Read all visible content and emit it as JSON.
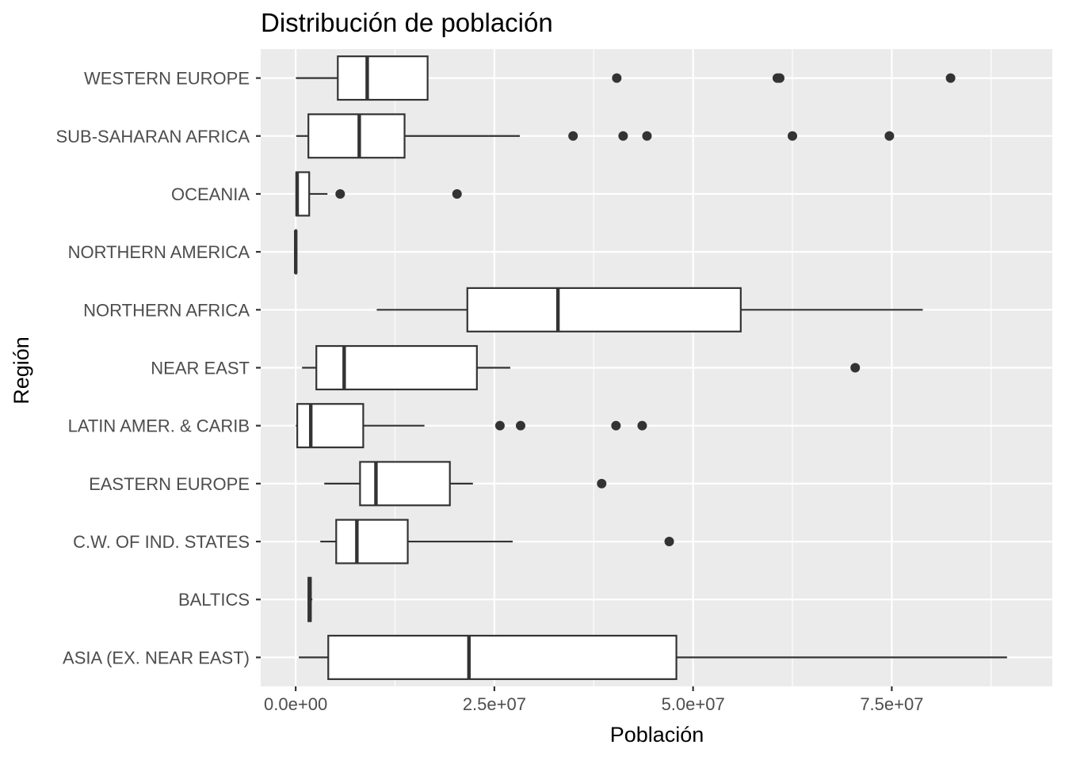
{
  "chart_data": {
    "type": "boxplot",
    "orientation": "horizontal",
    "title": "Distribución de población",
    "xlabel": "Población",
    "ylabel": "Región",
    "xlim": [
      -4400000,
      95200000
    ],
    "x_ticks": [
      0,
      25000000,
      50000000,
      75000000
    ],
    "x_tick_labels": [
      "0.0e+00",
      "2.5e+07",
      "5.0e+07",
      "7.5e+07"
    ],
    "grid": true,
    "background": "#ebebeb",
    "grid_color": "#ffffff",
    "box_fill": "#ffffff",
    "line_color": "#333333",
    "categories": [
      "WESTERN EUROPE",
      "SUB-SAHARAN AFRICA",
      "OCEANIA",
      "NORTHERN AMERICA",
      "NORTHERN AFRICA",
      "NEAR EAST",
      "LATIN AMER. & CARIB",
      "EASTERN EUROPE",
      "C.W. OF IND. STATES",
      "BALTICS",
      "ASIA (EX. NEAR EAST)"
    ],
    "boxes": [
      {
        "region": "WESTERN EUROPE",
        "whisker_low": 30000,
        "q1": 5300000,
        "median": 9000000,
        "q3": 16600000,
        "whisker_high": 16600000,
        "outliers": [
          40400000,
          60600000,
          60900000,
          82400000
        ]
      },
      {
        "region": "SUB-SAHARAN AFRICA",
        "whisker_low": 80000,
        "q1": 1600000,
        "median": 8000000,
        "q3": 13700000,
        "whisker_high": 28200000,
        "outliers": [
          34900000,
          41200000,
          44200000,
          62500000,
          74700000
        ]
      },
      {
        "region": "OCEANIA",
        "whisker_low": 10000,
        "q1": 80000,
        "median": 190000,
        "q3": 1700000,
        "whisker_high": 4000000,
        "outliers": [
          5600000,
          20300000
        ]
      },
      {
        "region": "NORTHERN AMERICA",
        "whisker_low": 7000,
        "q1": 7000,
        "median": 7000,
        "q3": 7000,
        "whisker_high": 7000,
        "outliers": []
      },
      {
        "region": "NORTHERN AFRICA",
        "whisker_low": 10200000,
        "q1": 21600000,
        "median": 33000000,
        "q3": 56000000,
        "whisker_high": 78900000,
        "outliers": []
      },
      {
        "region": "NEAR EAST",
        "whisker_low": 800000,
        "q1": 2600000,
        "median": 6100000,
        "q3": 22800000,
        "whisker_high": 27000000,
        "outliers": [
          70400000
        ]
      },
      {
        "region": "LATIN AMER. & CARIB",
        "whisker_low": 13000,
        "q1": 200000,
        "median": 1900000,
        "q3": 8500000,
        "whisker_high": 16200000,
        "outliers": [
          25700000,
          28300000,
          40300000,
          43600000
        ]
      },
      {
        "region": "EASTERN EUROPE",
        "whisker_low": 3600000,
        "q1": 8100000,
        "median": 10100000,
        "q3": 19400000,
        "whisker_high": 22300000,
        "outliers": [
          38500000
        ]
      },
      {
        "region": "C.W. OF IND. STATES",
        "whisker_low": 3100000,
        "q1": 5100000,
        "median": 7700000,
        "q3": 14100000,
        "whisker_high": 27300000,
        "outliers": [
          47000000
        ]
      },
      {
        "region": "BALTICS",
        "whisker_low": 1500000,
        "q1": 1600000,
        "median": 1800000,
        "q3": 1900000,
        "whisker_high": 2100000,
        "outliers": []
      },
      {
        "region": "ASIA (EX. NEAR EAST)",
        "whisker_low": 400000,
        "q1": 4100000,
        "median": 21800000,
        "q3": 47900000,
        "whisker_high": 89500000,
        "outliers": []
      }
    ]
  }
}
